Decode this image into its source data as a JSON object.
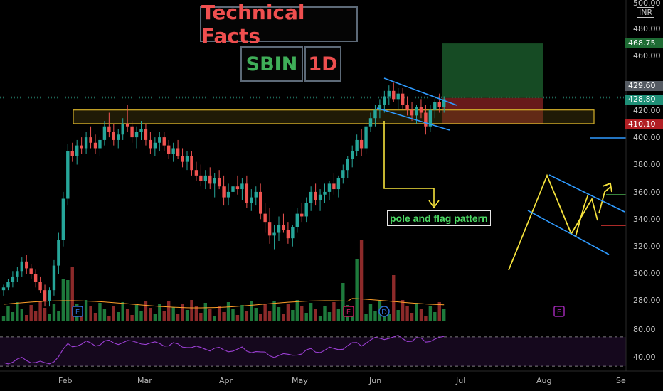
{
  "header": {
    "title": "Technical Facts",
    "symbol": "SBIN",
    "interval": "1D"
  },
  "annotation": "pole and flag pattern",
  "price_axis": {
    "top_label": "500.00",
    "currency": "INR",
    "ticks": [
      "480.00",
      "460.00",
      "420.00",
      "400.00",
      "380.00",
      "360.00",
      "340.00",
      "320.00",
      "300.00",
      "280.00"
    ],
    "badges": [
      {
        "label": "468.75",
        "bg": "#1e6b34",
        "fg": "#ffffff"
      },
      {
        "label": "429.60",
        "bg": "#555b63",
        "fg": "#ffffff"
      },
      {
        "label": "428.80",
        "bg": "#1f8f77",
        "fg": "#ffffff"
      },
      {
        "label": "410.10",
        "bg": "#b11f24",
        "fg": "#ffffff"
      }
    ]
  },
  "rsi_axis": {
    "ticks": [
      "80.00",
      "40.00"
    ]
  },
  "months": [
    "Feb",
    "Mar",
    "Apr",
    "May",
    "Jun",
    "Jul",
    "Aug",
    "Se"
  ],
  "event_markers": [
    {
      "label": "E",
      "color": "#2f6fd6"
    },
    {
      "label": "E",
      "color": "#c2185b"
    },
    {
      "label": "D",
      "color": "#2f6fd6"
    },
    {
      "label": "E",
      "color": "#9c27b0"
    }
  ],
  "colors": {
    "up": "#26a69a",
    "down": "#ef5350",
    "zone": "#d4b02a",
    "channel": "#2f9bff",
    "rsi": "#9c3fd4",
    "ma": "#ff9f2a",
    "sketch": "#f5e23c"
  },
  "chart_data": {
    "type": "candlestick",
    "ylim": [
      270,
      500
    ],
    "resistance_zone": [
      410,
      420
    ],
    "target": 468.75,
    "stop": 410.1,
    "close": 428.8,
    "prev": 429.6,
    "candles": [
      [
        288,
        292,
        284,
        290
      ],
      [
        290,
        296,
        288,
        294
      ],
      [
        294,
        302,
        290,
        298
      ],
      [
        298,
        305,
        294,
        302
      ],
      [
        302,
        312,
        298,
        309
      ],
      [
        309,
        314,
        300,
        304
      ],
      [
        304,
        307,
        296,
        300
      ],
      [
        300,
        303,
        290,
        294
      ],
      [
        294,
        298,
        286,
        288
      ],
      [
        288,
        292,
        276,
        280
      ],
      [
        280,
        290,
        276,
        288
      ],
      [
        288,
        310,
        284,
        306
      ],
      [
        306,
        330,
        300,
        325
      ],
      [
        325,
        360,
        320,
        355
      ],
      [
        355,
        395,
        350,
        390
      ],
      [
        390,
        396,
        382,
        386
      ],
      [
        386,
        398,
        380,
        394
      ],
      [
        394,
        400,
        388,
        392
      ],
      [
        392,
        404,
        388,
        400
      ],
      [
        400,
        408,
        392,
        396
      ],
      [
        396,
        402,
        388,
        392
      ],
      [
        392,
        400,
        386,
        398
      ],
      [
        398,
        412,
        394,
        408
      ],
      [
        408,
        418,
        400,
        404
      ],
      [
        404,
        410,
        394,
        398
      ],
      [
        398,
        406,
        392,
        402
      ],
      [
        402,
        414,
        398,
        410
      ],
      [
        410,
        424,
        404,
        408
      ],
      [
        408,
        412,
        396,
        400
      ],
      [
        400,
        408,
        392,
        404
      ],
      [
        404,
        412,
        398,
        406
      ],
      [
        406,
        410,
        394,
        398
      ],
      [
        398,
        404,
        388,
        392
      ],
      [
        392,
        400,
        386,
        396
      ],
      [
        396,
        404,
        390,
        400
      ],
      [
        400,
        404,
        390,
        394
      ],
      [
        394,
        398,
        384,
        388
      ],
      [
        388,
        396,
        382,
        392
      ],
      [
        392,
        398,
        384,
        386
      ],
      [
        386,
        392,
        378,
        382
      ],
      [
        382,
        390,
        376,
        386
      ],
      [
        386,
        390,
        372,
        376
      ],
      [
        376,
        382,
        368,
        372
      ],
      [
        372,
        380,
        364,
        368
      ],
      [
        368,
        376,
        362,
        372
      ],
      [
        372,
        378,
        362,
        366
      ],
      [
        366,
        374,
        356,
        370
      ],
      [
        370,
        376,
        362,
        364
      ],
      [
        364,
        372,
        350,
        356
      ],
      [
        356,
        366,
        350,
        360
      ],
      [
        360,
        368,
        352,
        364
      ],
      [
        364,
        372,
        358,
        362
      ],
      [
        362,
        370,
        354,
        366
      ],
      [
        366,
        372,
        348,
        352
      ],
      [
        352,
        362,
        346,
        356
      ],
      [
        356,
        364,
        350,
        360
      ],
      [
        360,
        366,
        340,
        344
      ],
      [
        344,
        352,
        330,
        338
      ],
      [
        338,
        348,
        322,
        328
      ],
      [
        328,
        336,
        318,
        330
      ],
      [
        330,
        342,
        324,
        336
      ],
      [
        336,
        344,
        330,
        332
      ],
      [
        332,
        338,
        322,
        326
      ],
      [
        326,
        336,
        320,
        334
      ],
      [
        334,
        348,
        330,
        344
      ],
      [
        344,
        352,
        338,
        342
      ],
      [
        342,
        356,
        338,
        352
      ],
      [
        352,
        364,
        346,
        360
      ],
      [
        360,
        366,
        350,
        354
      ],
      [
        354,
        362,
        346,
        358
      ],
      [
        358,
        366,
        352,
        360
      ],
      [
        360,
        368,
        354,
        366
      ],
      [
        366,
        374,
        358,
        362
      ],
      [
        362,
        372,
        356,
        370
      ],
      [
        370,
        380,
        366,
        376
      ],
      [
        376,
        386,
        370,
        384
      ],
      [
        384,
        394,
        378,
        390
      ],
      [
        390,
        402,
        386,
        398
      ],
      [
        398,
        406,
        386,
        392
      ],
      [
        392,
        412,
        388,
        408
      ],
      [
        408,
        418,
        404,
        414
      ],
      [
        414,
        424,
        408,
        420
      ],
      [
        420,
        428,
        414,
        424
      ],
      [
        424,
        434,
        418,
        430
      ],
      [
        430,
        438,
        424,
        434
      ],
      [
        434,
        440,
        426,
        428
      ],
      [
        428,
        436,
        420,
        432
      ],
      [
        432,
        436,
        420,
        424
      ],
      [
        424,
        430,
        416,
        420
      ],
      [
        420,
        426,
        412,
        416
      ],
      [
        416,
        424,
        410,
        422
      ],
      [
        422,
        428,
        414,
        418
      ],
      [
        418,
        424,
        402,
        408
      ],
      [
        408,
        424,
        404,
        420
      ],
      [
        420,
        428,
        414,
        426
      ],
      [
        426,
        432,
        418,
        422
      ],
      [
        422,
        430,
        418,
        428
      ]
    ]
  }
}
